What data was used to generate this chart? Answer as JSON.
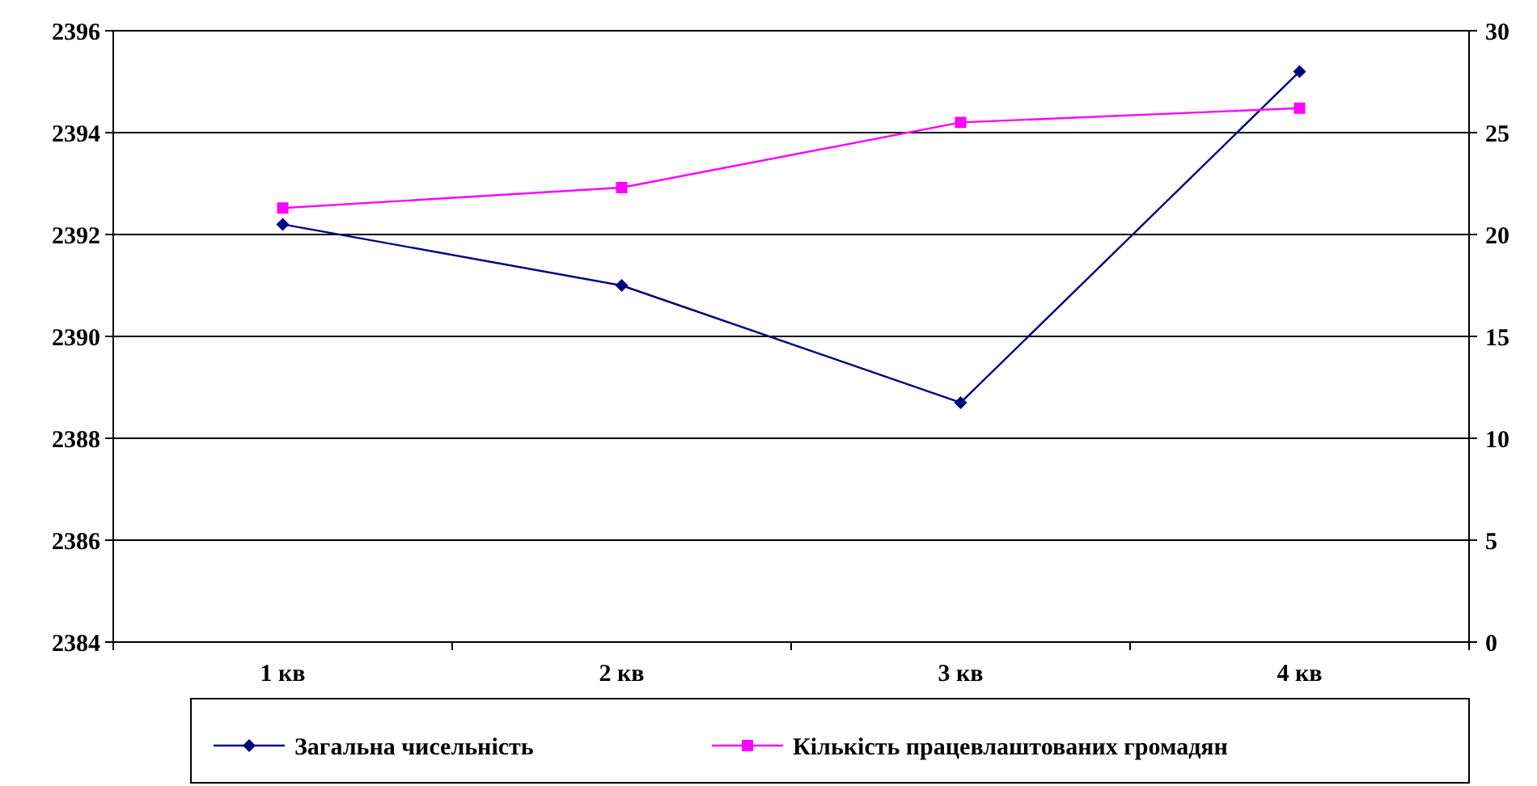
{
  "chart_data": {
    "type": "line",
    "categories": [
      "1 кв",
      "2 кв",
      "3 кв",
      "4 кв"
    ],
    "series": [
      {
        "name": "Загальна чисельність",
        "color": "#000080",
        "marker": "diamond",
        "values": [
          2392.2,
          2391.0,
          2388.7,
          2395.2
        ]
      },
      {
        "name": "Кількість працевлаштованих громадян",
        "color": "#ff00ff",
        "marker": "square",
        "axis": "y2",
        "values": [
          21.3,
          22.3,
          25.5,
          26.2
        ]
      }
    ],
    "ylim": [
      2384,
      2396
    ],
    "yticks": [
      2384,
      2386,
      2388,
      2390,
      2392,
      2394,
      2396
    ],
    "y2lim": [
      0,
      30
    ],
    "y2ticks": [
      0,
      5,
      10,
      15,
      20,
      25,
      30
    ],
    "grid": "y",
    "legend": "bottom"
  }
}
